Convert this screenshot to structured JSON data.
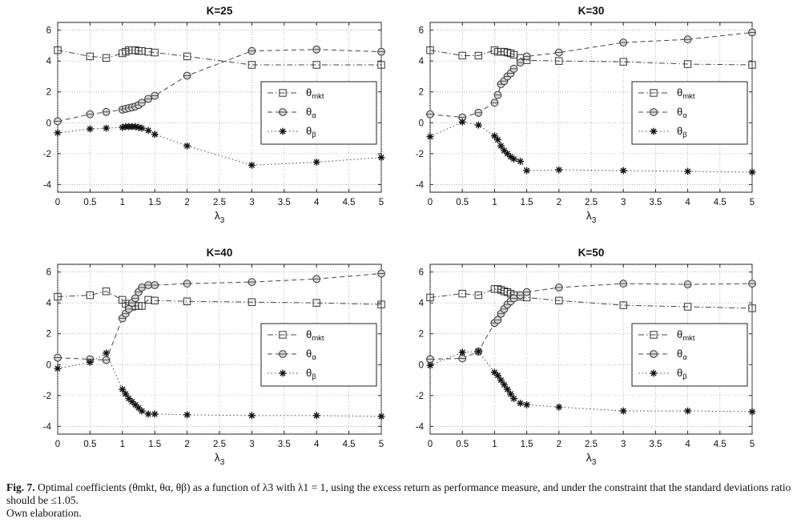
{
  "figure": {
    "caption_label": "Fig. 7.",
    "caption_text": "Optimal coefficients (θmkt, θα, θβ) as a function of λ3 with λ1 = 1, using the excess return as performance measure, and under the constraint that the standard deviations ratio should be ≤1.05.",
    "caption_credit": "Own elaboration."
  },
  "chart_data": [
    {
      "type": "line",
      "title": "K=25",
      "xlabel": "λ3",
      "ylabel": "",
      "xlim": [
        0,
        5
      ],
      "ylim": [
        -4.5,
        6.5
      ],
      "xticks": [
        "0",
        "0.5",
        "1",
        "1.5",
        "2",
        "2.5",
        "3",
        "3.5",
        "4",
        "4.5",
        "5"
      ],
      "yticks": [
        "-4",
        "-2",
        "0",
        "2",
        "4",
        "6"
      ],
      "grid": true,
      "legend_position": "right",
      "x": [
        0,
        0.5,
        0.75,
        1,
        1.05,
        1.1,
        1.15,
        1.2,
        1.25,
        1.3,
        1.4,
        1.5,
        2,
        3,
        4,
        5
      ],
      "series": [
        {
          "name": "θmkt",
          "marker": "square",
          "dash": "dashdot",
          "values": [
            4.7,
            4.3,
            4.2,
            4.5,
            4.6,
            4.7,
            4.7,
            4.7,
            4.65,
            4.65,
            4.6,
            4.55,
            4.3,
            3.75,
            3.75,
            3.75
          ]
        },
        {
          "name": "θα",
          "marker": "circle",
          "dash": "dashed",
          "values": [
            0.1,
            0.55,
            0.7,
            0.85,
            0.9,
            0.95,
            1.0,
            1.05,
            1.15,
            1.3,
            1.55,
            1.75,
            3.05,
            4.65,
            4.75,
            4.6
          ]
        },
        {
          "name": "θβ",
          "marker": "star",
          "dash": "dotted",
          "values": [
            -0.65,
            -0.4,
            -0.35,
            -0.3,
            -0.25,
            -0.25,
            -0.25,
            -0.25,
            -0.3,
            -0.35,
            -0.5,
            -0.75,
            -1.5,
            -2.75,
            -2.55,
            -2.25
          ]
        }
      ]
    },
    {
      "type": "line",
      "title": "K=30",
      "xlabel": "λ3",
      "ylabel": "",
      "xlim": [
        0,
        5
      ],
      "ylim": [
        -4.5,
        6.5
      ],
      "xticks": [
        "0",
        "0.5",
        "1",
        "1.5",
        "2",
        "2.5",
        "3",
        "3.5",
        "4",
        "4.5",
        "5"
      ],
      "yticks": [
        "-4",
        "-2",
        "0",
        "2",
        "4",
        "6"
      ],
      "grid": true,
      "legend_position": "right",
      "x": [
        0,
        0.5,
        0.75,
        1,
        1.05,
        1.1,
        1.15,
        1.2,
        1.25,
        1.3,
        1.4,
        1.5,
        2,
        3,
        4,
        5
      ],
      "series": [
        {
          "name": "θmkt",
          "marker": "square",
          "dash": "dashdot",
          "values": [
            4.7,
            4.35,
            4.35,
            4.7,
            4.6,
            4.6,
            4.6,
            4.55,
            4.5,
            4.4,
            4.2,
            4.05,
            4.0,
            3.95,
            3.8,
            3.75
          ]
        },
        {
          "name": "θα",
          "marker": "circle",
          "dash": "dashed",
          "values": [
            0.55,
            0.35,
            0.65,
            1.3,
            1.8,
            2.5,
            2.7,
            3.0,
            3.2,
            3.5,
            3.9,
            4.3,
            4.55,
            5.2,
            5.4,
            5.85
          ]
        },
        {
          "name": "θβ",
          "marker": "star",
          "dash": "dotted",
          "values": [
            -0.9,
            0.05,
            -0.15,
            -0.85,
            -1.1,
            -1.5,
            -1.8,
            -2.0,
            -2.2,
            -2.35,
            -2.5,
            -3.1,
            -3.05,
            -3.1,
            -3.15,
            -3.2
          ]
        }
      ]
    },
    {
      "type": "line",
      "title": "K=40",
      "xlabel": "λ3",
      "ylabel": "",
      "xlim": [
        0,
        5
      ],
      "ylim": [
        -4.5,
        6.5
      ],
      "xticks": [
        "0",
        "0.5",
        "1",
        "1.5",
        "2",
        "2.5",
        "3",
        "3.5",
        "4",
        "4.5",
        "5"
      ],
      "yticks": [
        "-4",
        "-2",
        "0",
        "2",
        "4",
        "6"
      ],
      "grid": true,
      "legend_position": "right",
      "x": [
        0,
        0.5,
        0.75,
        1,
        1.05,
        1.1,
        1.15,
        1.2,
        1.25,
        1.3,
        1.4,
        1.5,
        2,
        3,
        4,
        5
      ],
      "series": [
        {
          "name": "θmkt",
          "marker": "square",
          "dash": "dashdot",
          "values": [
            4.4,
            4.5,
            4.75,
            4.2,
            3.95,
            3.8,
            3.75,
            3.8,
            3.8,
            3.8,
            4.2,
            4.15,
            4.1,
            4.05,
            4.0,
            3.9
          ]
        },
        {
          "name": "θα",
          "marker": "circle",
          "dash": "dashed",
          "values": [
            0.45,
            0.35,
            0.3,
            3.0,
            3.3,
            3.6,
            4.0,
            4.3,
            4.7,
            5.0,
            5.15,
            5.15,
            5.25,
            5.35,
            5.55,
            5.9
          ]
        },
        {
          "name": "θβ",
          "marker": "star",
          "dash": "dotted",
          "values": [
            -0.25,
            0.15,
            0.75,
            -1.6,
            -1.9,
            -2.2,
            -2.4,
            -2.6,
            -2.8,
            -3.0,
            -3.2,
            -3.2,
            -3.25,
            -3.3,
            -3.3,
            -3.35
          ]
        }
      ]
    },
    {
      "type": "line",
      "title": "K=50",
      "xlabel": "λ3",
      "ylabel": "",
      "xlim": [
        0,
        5
      ],
      "ylim": [
        -4.5,
        6.5
      ],
      "xticks": [
        "0",
        "0.5",
        "1",
        "1.5",
        "2",
        "2.5",
        "3",
        "3.5",
        "4",
        "4.5",
        "5"
      ],
      "yticks": [
        "-4",
        "-2",
        "0",
        "2",
        "4",
        "6"
      ],
      "grid": true,
      "legend_position": "right",
      "x": [
        0,
        0.5,
        0.75,
        1,
        1.05,
        1.1,
        1.15,
        1.2,
        1.25,
        1.3,
        1.4,
        1.5,
        2,
        3,
        4,
        5
      ],
      "series": [
        {
          "name": "θmkt",
          "marker": "square",
          "dash": "dashdot",
          "values": [
            4.35,
            4.6,
            4.5,
            4.9,
            4.9,
            4.85,
            4.75,
            4.7,
            4.6,
            4.5,
            4.4,
            4.35,
            4.15,
            3.85,
            3.75,
            3.65
          ]
        },
        {
          "name": "θα",
          "marker": "circle",
          "dash": "dashed",
          "values": [
            0.35,
            0.4,
            0.85,
            2.7,
            2.9,
            3.3,
            3.6,
            3.9,
            4.1,
            4.3,
            4.5,
            4.7,
            5.0,
            5.25,
            5.2,
            5.25
          ]
        },
        {
          "name": "θβ",
          "marker": "star",
          "dash": "dotted",
          "values": [
            -0.05,
            0.8,
            0.85,
            -0.5,
            -0.7,
            -1.0,
            -1.3,
            -1.6,
            -1.9,
            -2.2,
            -2.5,
            -2.6,
            -2.75,
            -3.0,
            -3.0,
            -3.05
          ]
        }
      ]
    }
  ]
}
